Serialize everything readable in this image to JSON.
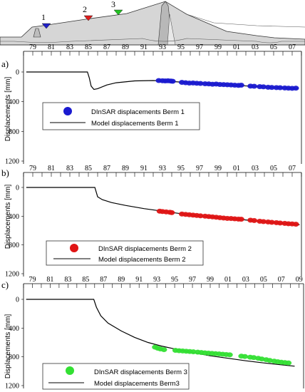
{
  "cross_section": {
    "marker_labels": [
      "1",
      "2",
      "3"
    ],
    "marker_colors": [
      "#1f1fc8",
      "#e01b1b",
      "#22c322"
    ],
    "fill_color": "#d4d4d4"
  },
  "chart_data": [
    {
      "type": "line",
      "panel_label": "a)",
      "ylabel": "Displacements [mm]",
      "ylim": [
        1200,
        0
      ],
      "yticks": [
        0,
        400,
        800,
        1200
      ],
      "year_range": [
        1978,
        2008
      ],
      "xtick_labels": [
        "79",
        "81",
        "83",
        "85",
        "87",
        "89",
        "91",
        "93",
        "95",
        "97",
        "99",
        "01",
        "03",
        "05",
        "07"
      ],
      "xtick_years": [
        1979,
        1981,
        1983,
        1985,
        1987,
        1989,
        1991,
        1993,
        1995,
        1997,
        1999,
        2001,
        2003,
        2005,
        2007
      ],
      "grid": false,
      "legend_position": "left-middle",
      "series": [
        {
          "name": "DInSAR displacements Berm 1",
          "kind": "scatter",
          "color": "#1a1ad0",
          "points": [
            [
              1992.6,
              115
            ],
            [
              1993.0,
              118
            ],
            [
              1993.3,
              120
            ],
            [
              1993.6,
              118
            ],
            [
              1993.9,
              122
            ],
            [
              1994.1,
              125
            ],
            [
              1995.1,
              140
            ],
            [
              1995.5,
              145
            ],
            [
              1995.9,
              150
            ],
            [
              1996.3,
              148
            ],
            [
              1996.7,
              152
            ],
            [
              1997.1,
              155
            ],
            [
              1997.6,
              158
            ],
            [
              1998.0,
              160
            ],
            [
              1998.4,
              165
            ],
            [
              1998.8,
              162
            ],
            [
              1999.2,
              168
            ],
            [
              1999.6,
              170
            ],
            [
              2000.0,
              172
            ],
            [
              2000.4,
              175
            ],
            [
              2000.8,
              178
            ],
            [
              2001.2,
              180
            ],
            [
              2001.5,
              178
            ],
            [
              2002.5,
              190
            ],
            [
              2002.9,
              192
            ],
            [
              2003.5,
              198
            ],
            [
              2003.9,
              200
            ],
            [
              2004.4,
              205
            ],
            [
              2004.8,
              208
            ],
            [
              2005.3,
              210
            ],
            [
              2005.7,
              212
            ],
            [
              2006.2,
              215
            ],
            [
              2006.6,
              218
            ],
            [
              2007.0,
              220
            ],
            [
              2007.4,
              218
            ]
          ]
        },
        {
          "name": "Model displacements Berm 1",
          "kind": "line",
          "color": "#000000",
          "points": [
            [
              1978.3,
              0
            ],
            [
              1984.9,
              0
            ],
            [
              1985.1,
              80
            ],
            [
              1985.3,
              190
            ],
            [
              1985.6,
              235
            ],
            [
              1986.0,
              225
            ],
            [
              1987.0,
              175
            ],
            [
              1988.0,
              145
            ],
            [
              1990.0,
              120
            ],
            [
              1992.0,
              115
            ],
            [
              1995.0,
              135
            ],
            [
              1999.0,
              165
            ],
            [
              2003.0,
              195
            ],
            [
              2007.6,
              225
            ]
          ]
        }
      ]
    },
    {
      "type": "line",
      "panel_label": "b)",
      "ylabel": "Displacements [mm]",
      "ylim": [
        1200,
        0
      ],
      "yticks": [
        0,
        400,
        800,
        1200
      ],
      "year_range": [
        1978,
        2008
      ],
      "xtick_labels": [
        "79",
        "81",
        "83",
        "85",
        "87",
        "89",
        "91",
        "93",
        "95",
        "97",
        "99",
        "01",
        "03",
        "05",
        "07"
      ],
      "xtick_years": [
        1979,
        1981,
        1983,
        1985,
        1987,
        1989,
        1991,
        1993,
        1995,
        1997,
        1999,
        2001,
        2003,
        2005,
        2007
      ],
      "grid": false,
      "legend_position": "left-bottom",
      "series": [
        {
          "name": "DInSAR displacements Berm 2",
          "kind": "scatter",
          "color": "#e01414",
          "points": [
            [
              1992.7,
              330
            ],
            [
              1993.0,
              335
            ],
            [
              1993.4,
              340
            ],
            [
              1993.8,
              345
            ],
            [
              1994.0,
              350
            ],
            [
              1995.1,
              370
            ],
            [
              1995.5,
              375
            ],
            [
              1995.9,
              380
            ],
            [
              1996.3,
              385
            ],
            [
              1996.7,
              390
            ],
            [
              1997.1,
              395
            ],
            [
              1997.6,
              400
            ],
            [
              1998.0,
              405
            ],
            [
              1998.4,
              410
            ],
            [
              1998.8,
              415
            ],
            [
              1999.2,
              420
            ],
            [
              1999.6,
              425
            ],
            [
              2000.0,
              430
            ],
            [
              2000.4,
              432
            ],
            [
              2000.8,
              436
            ],
            [
              2001.2,
              440
            ],
            [
              2001.5,
              442
            ],
            [
              2002.5,
              455
            ],
            [
              2002.9,
              460
            ],
            [
              2003.5,
              470
            ],
            [
              2003.9,
              475
            ],
            [
              2004.4,
              480
            ],
            [
              2004.8,
              485
            ],
            [
              2005.3,
              490
            ],
            [
              2005.7,
              495
            ],
            [
              2006.2,
              500
            ],
            [
              2006.6,
              505
            ],
            [
              2007.0,
              508
            ],
            [
              2007.4,
              512
            ]
          ]
        },
        {
          "name": "Model displacements Berm 2",
          "kind": "line",
          "color": "#000000",
          "points": [
            [
              1978.3,
              0
            ],
            [
              1985.7,
              0
            ],
            [
              1986.0,
              130
            ],
            [
              1986.5,
              170
            ],
            [
              1987.5,
              210
            ],
            [
              1989.0,
              250
            ],
            [
              1991.0,
              295
            ],
            [
              1993.0,
              330
            ],
            [
              1995.0,
              365
            ],
            [
              1997.0,
              395
            ],
            [
              1999.0,
              420
            ],
            [
              2001.0,
              440
            ],
            [
              2003.0,
              465
            ],
            [
              2005.0,
              490
            ],
            [
              2007.8,
              520
            ]
          ]
        }
      ]
    },
    {
      "type": "line",
      "panel_label": "c)",
      "ylabel": "Displacements [mm]",
      "ylim": [
        1200,
        0
      ],
      "yticks": [
        0,
        400,
        800,
        1200
      ],
      "year_range": [
        1978,
        2009.5
      ],
      "xtick_labels": [
        "79",
        "81",
        "83",
        "85",
        "87",
        "89",
        "91",
        "93",
        "95",
        "97",
        "99",
        "01",
        "03",
        "05",
        "07",
        "09"
      ],
      "xtick_years": [
        1979,
        1981,
        1983,
        1985,
        1987,
        1989,
        1991,
        1993,
        1995,
        1997,
        1999,
        2001,
        2003,
        2005,
        2007,
        2009
      ],
      "grid": false,
      "legend_position": "bottom-left",
      "series": [
        {
          "name": "DInSAR displacements Berm 3",
          "kind": "scatter",
          "color": "#33e033",
          "points": [
            [
              1992.8,
              665
            ],
            [
              1993.1,
              680
            ],
            [
              1993.4,
              690
            ],
            [
              1993.8,
              700
            ],
            [
              1995.1,
              710
            ],
            [
              1995.5,
              715
            ],
            [
              1995.9,
              718
            ],
            [
              1996.3,
              722
            ],
            [
              1996.7,
              726
            ],
            [
              1997.1,
              730
            ],
            [
              1997.6,
              735
            ],
            [
              1998.0,
              740
            ],
            [
              1998.4,
              745
            ],
            [
              1998.8,
              748
            ],
            [
              1999.2,
              752
            ],
            [
              1999.6,
              756
            ],
            [
              2000.0,
              760
            ],
            [
              2000.4,
              764
            ],
            [
              2000.8,
              768
            ],
            [
              2001.2,
              772
            ],
            [
              2002.5,
              790
            ],
            [
              2002.9,
              795
            ],
            [
              2003.5,
              805
            ],
            [
              2003.9,
              810
            ],
            [
              2004.4,
              820
            ],
            [
              2004.8,
              830
            ],
            [
              2005.3,
              840
            ],
            [
              2005.7,
              850
            ],
            [
              2006.2,
              860
            ],
            [
              2006.6,
              868
            ],
            [
              2007.0,
              875
            ],
            [
              2007.4,
              880
            ],
            [
              2007.8,
              885
            ]
          ]
        },
        {
          "name": "Model displacements Berm3",
          "kind": "line",
          "color": "#000000",
          "points": [
            [
              1978.3,
              0
            ],
            [
              1985.9,
              0
            ],
            [
              1986.2,
              110
            ],
            [
              1986.7,
              230
            ],
            [
              1987.5,
              330
            ],
            [
              1989.0,
              440
            ],
            [
              1990.5,
              530
            ],
            [
              1992.0,
              600
            ],
            [
              1993.5,
              650
            ],
            [
              1995.0,
              690
            ],
            [
              1997.0,
              740
            ],
            [
              1999.0,
              785
            ],
            [
              2001.0,
              820
            ],
            [
              2003.0,
              855
            ],
            [
              2005.0,
              885
            ],
            [
              2008.5,
              930
            ]
          ]
        }
      ]
    }
  ]
}
